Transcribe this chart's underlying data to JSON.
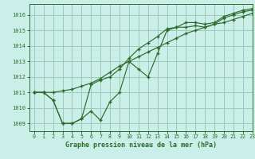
{
  "title": "Graphe pression niveau de la mer (hPa)",
  "background_color": "#cceee8",
  "grid_color": "#99ccbb",
  "line_color": "#2d6b2d",
  "xlim": [
    -0.5,
    23
  ],
  "ylim": [
    1008.5,
    1016.7
  ],
  "xticks": [
    0,
    1,
    2,
    3,
    4,
    5,
    6,
    7,
    8,
    9,
    10,
    11,
    12,
    13,
    14,
    15,
    16,
    17,
    18,
    19,
    20,
    21,
    22,
    23
  ],
  "yticks": [
    1009,
    1010,
    1011,
    1012,
    1013,
    1014,
    1015,
    1016
  ],
  "series": [
    [
      1011.0,
      1011.0,
      1010.5,
      1009.0,
      1009.0,
      1009.3,
      1009.8,
      1009.2,
      1010.4,
      1011.0,
      1013.0,
      1012.5,
      1012.0,
      1013.5,
      1015.0,
      1015.2,
      1015.2,
      1015.3,
      1015.2,
      1015.4,
      1015.8,
      1016.0,
      1016.2,
      1016.3
    ],
    [
      1011.0,
      1011.0,
      1011.0,
      1011.1,
      1011.2,
      1011.4,
      1011.6,
      1011.9,
      1012.3,
      1012.7,
      1013.0,
      1013.3,
      1013.6,
      1013.9,
      1014.2,
      1014.5,
      1014.8,
      1015.0,
      1015.2,
      1015.4,
      1015.5,
      1015.7,
      1015.9,
      1016.1
    ],
    [
      1011.0,
      1011.0,
      1010.5,
      1009.0,
      1009.0,
      1009.3,
      1011.5,
      1011.8,
      1012.0,
      1012.5,
      1013.2,
      1013.8,
      1014.2,
      1014.6,
      1015.1,
      1015.2,
      1015.5,
      1015.5,
      1015.4,
      1015.5,
      1015.9,
      1016.1,
      1016.3,
      1016.4
    ]
  ]
}
